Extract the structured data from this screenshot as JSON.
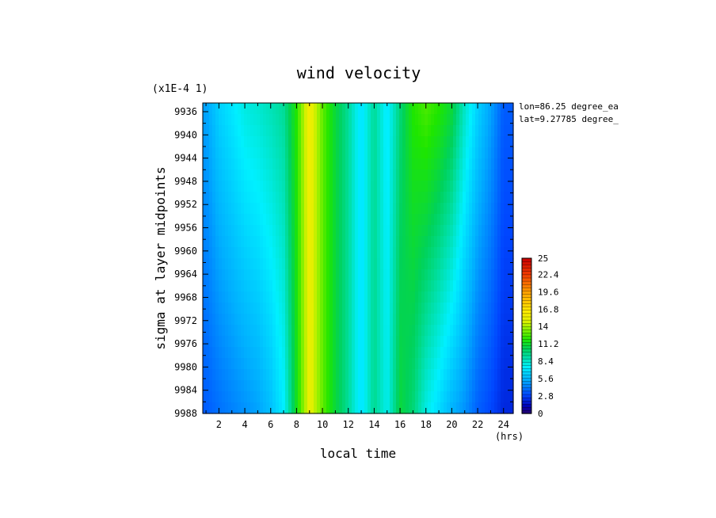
{
  "chart_data": {
    "type": "heatmap",
    "title": "wind velocity",
    "scale_note": "(x1E-4 1)",
    "xlabel": "local time",
    "xunits": "(hrs)",
    "ylabel": "sigma at layer midpoints",
    "info_lines": [
      "lon=86.25 degree_ea",
      "lat=9.27785 degree_"
    ],
    "xlim": [
      0.75,
      24.75
    ],
    "ylim": [
      9988,
      9934.5
    ],
    "x_ticks": [
      2,
      4,
      6,
      8,
      10,
      12,
      14,
      16,
      18,
      20,
      22,
      24
    ],
    "y_ticks": [
      9936,
      9940,
      9944,
      9948,
      9952,
      9956,
      9960,
      9964,
      9968,
      9972,
      9976,
      9980,
      9984,
      9988
    ],
    "hours": [
      1,
      2,
      3,
      4,
      5,
      6,
      7,
      8,
      9,
      10,
      11,
      12,
      13,
      14,
      15,
      16,
      17,
      18,
      19,
      20,
      21,
      22,
      23,
      24
    ],
    "sigma_levels": [
      9936,
      9988
    ],
    "values_top": [
      5.2,
      6.5,
      7.2,
      8.0,
      8.3,
      8.8,
      9.4,
      12.0,
      16.0,
      13.0,
      11.0,
      9.4,
      7.0,
      9.5,
      7.2,
      10.0,
      12.0,
      12.6,
      12.0,
      11.0,
      8.5,
      6.5,
      5.2,
      3.5
    ],
    "values_bottom": [
      3.5,
      4.0,
      4.4,
      4.8,
      5.2,
      6.0,
      7.4,
      11.5,
      15.5,
      13.0,
      11.0,
      9.4,
      7.0,
      9.6,
      7.8,
      11.0,
      10.0,
      8.0,
      6.8,
      5.6,
      4.8,
      3.6,
      3.0,
      2.2
    ],
    "colorbar": {
      "min": 0,
      "max": 25,
      "labels": [
        "25",
        "22.4",
        "19.6",
        "16.8",
        "14",
        "11.2",
        "8.4",
        "5.6",
        "2.8",
        "0"
      ],
      "label_values": [
        25,
        22.4,
        19.6,
        16.8,
        14,
        11.2,
        8.4,
        5.6,
        2.8,
        0
      ]
    },
    "grid": false,
    "legend": "colorbar-right"
  }
}
